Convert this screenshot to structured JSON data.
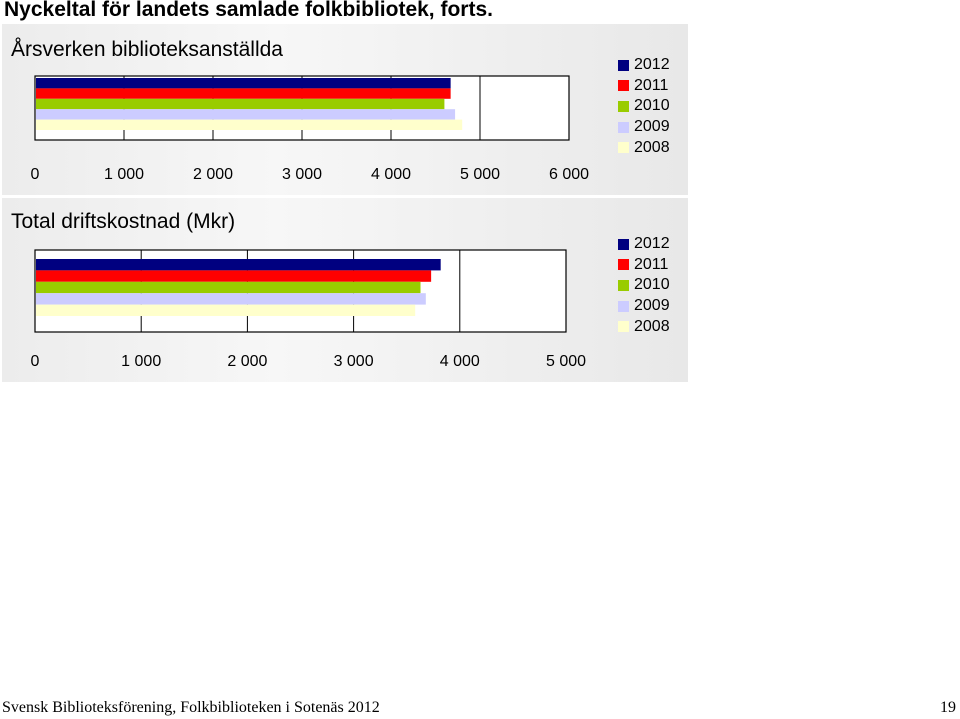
{
  "page": {
    "title": "Nyckeltal för landets samlade folkbibliotek, forts.",
    "footer_text": "Svensk Biblioteksförening, Folkbiblioteken i Sotenäs 2012",
    "page_number": "19"
  },
  "series_colors": {
    "2012": "#000080",
    "2011": "#ff0000",
    "2010": "#99cc00",
    "2009": "#ccccff",
    "2008": "#ffffcc"
  },
  "chart_data": [
    {
      "type": "bar",
      "orientation": "horizontal",
      "title": "Årsverken biblioteksanställda",
      "xlim": [
        0,
        6000
      ],
      "xticks": [
        0,
        1000,
        2000,
        3000,
        4000,
        5000,
        6000
      ],
      "tick_labels": [
        "0",
        "1 000",
        "2 000",
        "3 000",
        "4 000",
        "5 000",
        "6 000"
      ],
      "grid": true,
      "legend": "right",
      "series": [
        {
          "name": "2012",
          "value": 4670
        },
        {
          "name": "2011",
          "value": 4670
        },
        {
          "name": "2010",
          "value": 4600
        },
        {
          "name": "2009",
          "value": 4720
        },
        {
          "name": "2008",
          "value": 4800
        }
      ]
    },
    {
      "type": "bar",
      "orientation": "horizontal",
      "title": "Total driftskostnad (Mkr)",
      "xlim": [
        0,
        5000
      ],
      "xticks": [
        0,
        1000,
        2000,
        3000,
        4000,
        5000
      ],
      "tick_labels": [
        "0",
        "1 000",
        "2 000",
        "3 000",
        "4 000",
        "5 000"
      ],
      "grid": true,
      "legend": "right",
      "series": [
        {
          "name": "2012",
          "value": 3820
        },
        {
          "name": "2011",
          "value": 3730
        },
        {
          "name": "2010",
          "value": 3630
        },
        {
          "name": "2009",
          "value": 3680
        },
        {
          "name": "2008",
          "value": 3580
        }
      ]
    }
  ]
}
